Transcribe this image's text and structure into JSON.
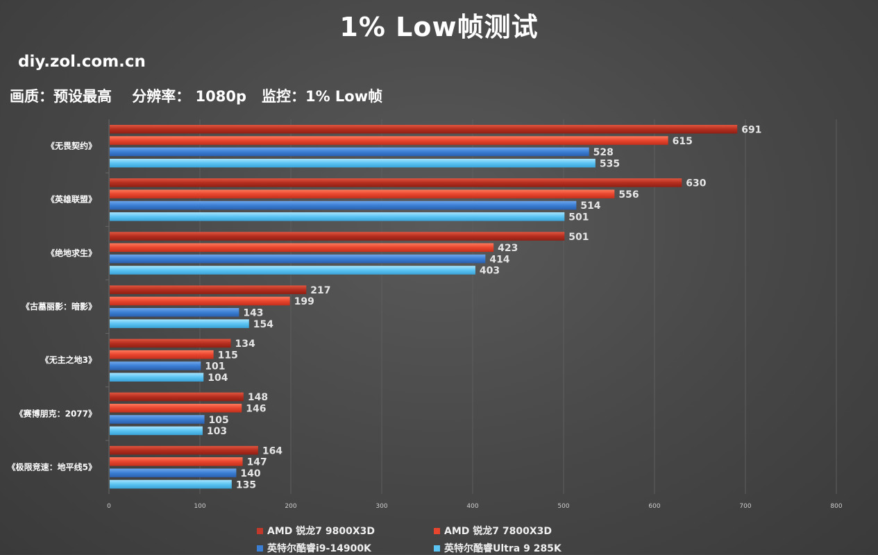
{
  "title": "1% Low帧测试",
  "site": "diy.zol.com.cn",
  "subtitle": "画质：预设最高    分辨率： 1080p   监控：1% Low帧",
  "colors": {
    "series1": "#c0392b",
    "series2": "#e8452e",
    "series3": "#3b7fd4",
    "series4": "#5cc4f2",
    "background": "#474747",
    "grid": "#5c5c5c"
  },
  "chart_data": {
    "type": "bar",
    "orientation": "horizontal",
    "categories": [
      "《无畏契约》",
      "《英雄联盟》",
      "《绝地求生》",
      "《古墓丽影：暗影》",
      "《无主之地3》",
      "《赛博朋克：2077》",
      "《极限竞速：地平线5》"
    ],
    "series": [
      {
        "name": "AMD 锐龙7 9800X3D",
        "values": [
          691,
          630,
          501,
          217,
          134,
          148,
          164
        ]
      },
      {
        "name": "AMD 锐龙7 7800X3D",
        "values": [
          615,
          556,
          423,
          199,
          115,
          146,
          147
        ]
      },
      {
        "name": "英特尔酷睿i9-14900K",
        "values": [
          528,
          514,
          414,
          143,
          101,
          105,
          140
        ]
      },
      {
        "name": "英特尔酷睿Ultra 9 285K",
        "values": [
          535,
          501,
          403,
          154,
          104,
          103,
          135
        ]
      }
    ],
    "xlim": [
      0,
      800
    ],
    "xticks": [
      0,
      100,
      200,
      300,
      400,
      500,
      600,
      700,
      800
    ],
    "grid": true,
    "legend": "bottom"
  }
}
